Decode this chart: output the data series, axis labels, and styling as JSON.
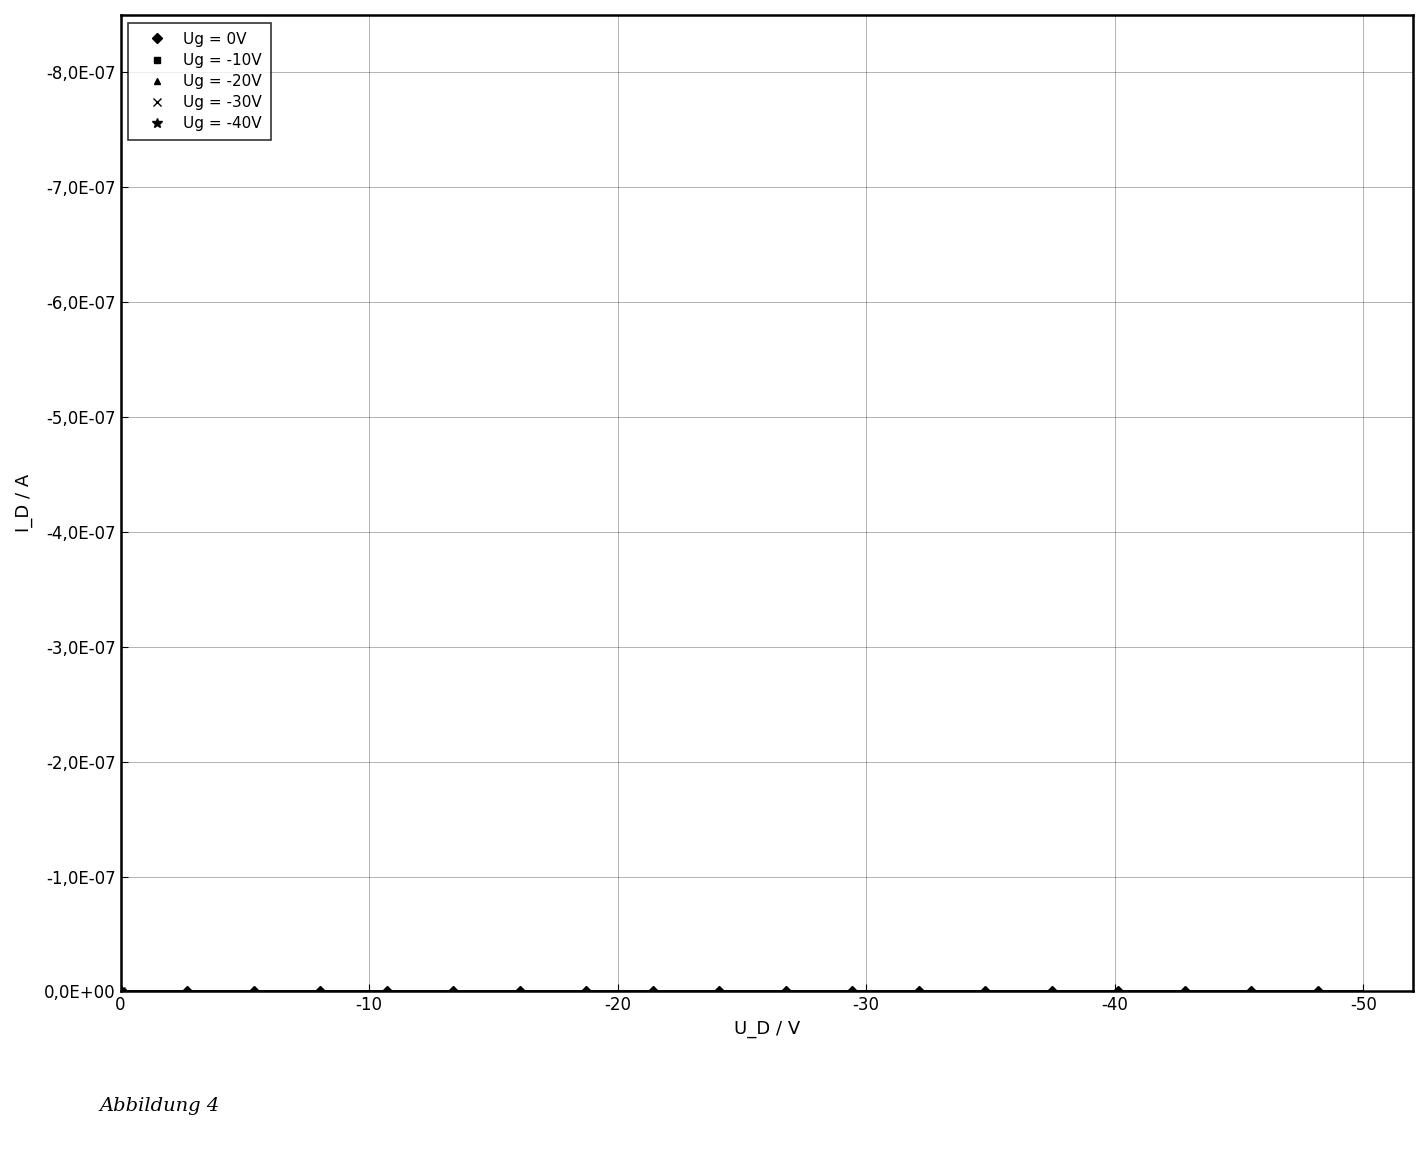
{
  "title": "",
  "xlabel": "U_D / V",
  "ylabel": "I_D / A",
  "caption": "Abbildung 4",
  "background_color": "#ffffff",
  "ytick_labels": [
    "0,0E+00",
    "-1,0E-07",
    "-2,0E-07",
    "-3,0E-07",
    "-4,0E-07",
    "-5,0E-07",
    "-6,0E-07",
    "-7,0E-07",
    "-8,0E-07"
  ],
  "xtick_labels": [
    "0",
    "-10",
    "-20",
    "-30",
    "-40",
    "-50"
  ],
  "series": [
    {
      "label": "Ug = 0V",
      "Vg": 0,
      "Vth": -5,
      "mu": 0.0,
      "marker": "D",
      "ms": 5
    },
    {
      "label": "Ug = -10V",
      "Vg": -10,
      "Vth": -5,
      "mu": 3.2e-09,
      "marker": "s",
      "ms": 5
    },
    {
      "label": "Ug = -20V",
      "Vg": -20,
      "Vth": -5,
      "mu": 5e-09,
      "marker": "^",
      "ms": 5
    },
    {
      "label": "Ug = -30V",
      "Vg": -30,
      "Vth": -5,
      "mu": 8e-09,
      "marker": "x",
      "ms": 6
    },
    {
      "label": "Ug = -40V",
      "Vg": -40,
      "Vth": -5,
      "mu": 1.15e-08,
      "marker": "*",
      "ms": 7
    }
  ]
}
